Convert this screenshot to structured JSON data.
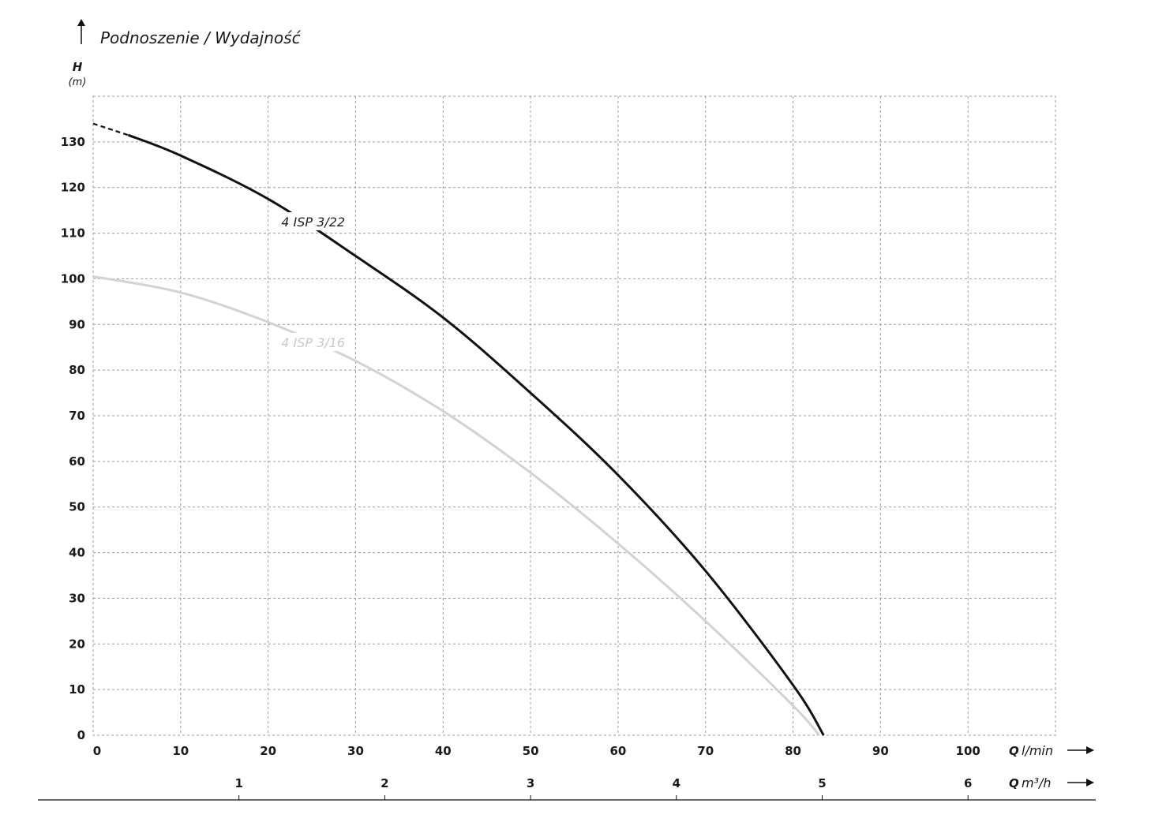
{
  "chart_data": {
    "type": "line",
    "title": "Podnoszenie / Wydajność",
    "ylabel": "H",
    "yunit": "(m)",
    "ylim": [
      0,
      140
    ],
    "yticks": [
      0,
      10,
      20,
      30,
      40,
      50,
      60,
      70,
      80,
      90,
      100,
      110,
      120,
      130
    ],
    "xlim": [
      0,
      110
    ],
    "xticks": [
      0,
      10,
      20,
      30,
      40,
      50,
      60,
      70,
      80,
      90,
      100
    ],
    "xlabel_q": "Q",
    "xlabel_unit": "l/min",
    "x2": {
      "label_q": "Q",
      "label_unit": "m³/h",
      "ticks": [
        1,
        2,
        3,
        4,
        5,
        6
      ]
    },
    "grid": true,
    "series": [
      {
        "name": "4 ISP 3/22",
        "color": "#111111",
        "dashed_segment_until_x": 4,
        "x": [
          0,
          4,
          10,
          20,
          30,
          40,
          50,
          60,
          70,
          80,
          83.5
        ],
        "y": [
          134,
          131.5,
          127,
          117.5,
          105,
          91.5,
          75,
          57,
          36,
          11,
          0
        ]
      },
      {
        "name": "4 ISP 3/16",
        "color": "#d2d2d2",
        "x": [
          0,
          10,
          20,
          30,
          40,
          50,
          60,
          70,
          80,
          83
        ],
        "y": [
          100.5,
          97,
          90.5,
          82,
          71,
          57.5,
          42,
          25,
          6.5,
          0
        ]
      }
    ]
  }
}
